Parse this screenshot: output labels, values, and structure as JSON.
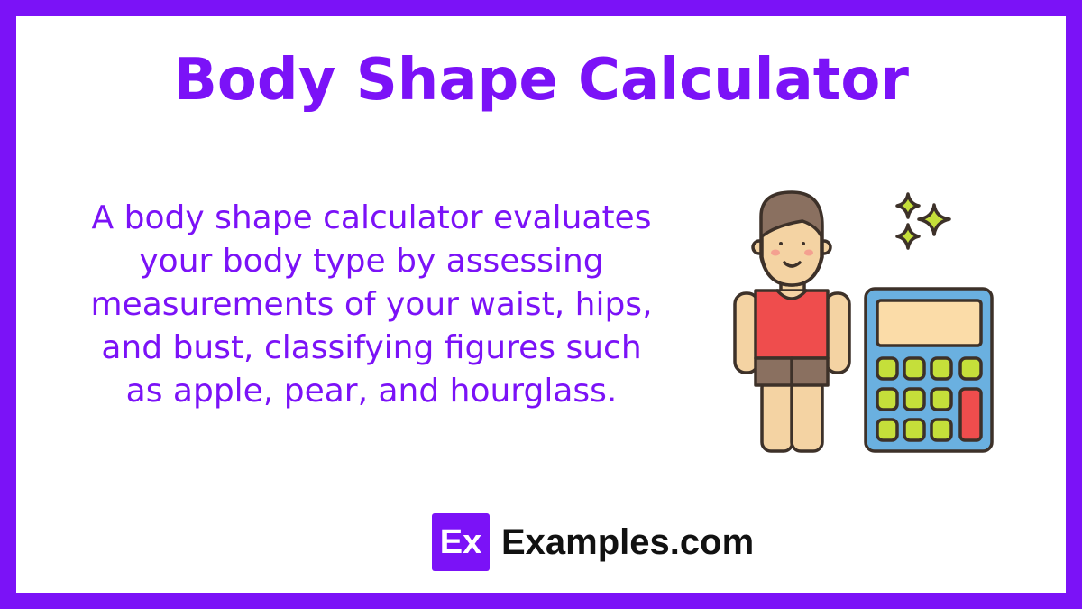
{
  "title": "Body Shape Calculator",
  "description": "A body shape calculator evaluates your body type by assessing measurements of your waist, hips, and bust, classifying figures such as apple, pear, and hourglass.",
  "illustration": {
    "icon": "person-with-calculator-icon",
    "colors": {
      "shirt": "#ef4d4d",
      "skin": "#f4d3a3",
      "hair": "#8a7060",
      "calculator": "#6ab0e0",
      "keys": "#c5df3a"
    }
  },
  "brand": {
    "logo_text": "Ex",
    "name": "Examples.com"
  },
  "colors": {
    "accent": "#7b12f7",
    "background": "#ffffff"
  }
}
